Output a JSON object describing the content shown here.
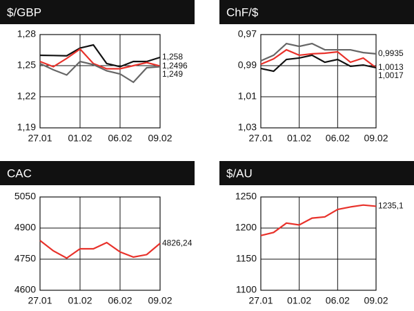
{
  "chart_data": [
    {
      "type": "line",
      "title": "$/GBP",
      "x": [
        "27.01",
        null,
        null,
        "01.02",
        null,
        null,
        "06.02",
        null,
        null,
        "09.02"
      ],
      "series": [
        {
          "color": "#111111",
          "values": [
            1.26,
            1.2598,
            1.2595,
            1.267,
            1.27,
            1.252,
            1.249,
            1.254,
            1.254,
            1.258
          ],
          "value_labels": [
            null,
            null,
            null,
            null,
            null,
            null,
            null,
            null,
            null,
            "1,258"
          ]
        },
        {
          "color": "#e8312a",
          "values": [
            1.254,
            1.249,
            1.257,
            1.266,
            1.252,
            1.247,
            1.247,
            1.25,
            1.253,
            1.2496
          ],
          "value_labels": [
            null,
            null,
            null,
            null,
            null,
            null,
            null,
            null,
            null,
            "1,2496"
          ]
        },
        {
          "color": "#666666",
          "values": [
            1.252,
            1.246,
            1.241,
            1.254,
            1.251,
            1.245,
            1.242,
            1.234,
            1.248,
            1.249
          ],
          "value_labels": [
            null,
            null,
            null,
            null,
            null,
            null,
            null,
            null,
            null,
            "1,249"
          ]
        }
      ],
      "ylim": [
        1.19,
        1.28
      ],
      "yticks": [
        {
          "value": 1.19,
          "label": "1,19"
        },
        {
          "value": 1.22,
          "label": "1,22"
        },
        {
          "value": 1.25,
          "label": "1,25"
        },
        {
          "value": 1.28,
          "label": "1,28"
        }
      ],
      "grid": true
    },
    {
      "type": "line",
      "title": "ChF/$",
      "x": [
        "27.01",
        null,
        null,
        "01.02",
        null,
        null,
        "06.02",
        null,
        null,
        "09.02"
      ],
      "series": [
        {
          "color": "#666666",
          "values": [
            0.9869,
            0.9833,
            0.9758,
            0.9776,
            0.9758,
            0.9798,
            0.9798,
            0.9798,
            0.9816,
            0.9824
          ]
        },
        {
          "color": "#e8312a",
          "values": [
            0.9891,
            0.9856,
            0.9798,
            0.9833,
            0.9824,
            0.982,
            0.9811,
            0.9878,
            0.9851,
            0.9913
          ]
        },
        {
          "color": "#111111",
          "values": [
            0.9918,
            0.9936,
            0.986,
            0.9851,
            0.9833,
            0.9878,
            0.986,
            0.9904,
            0.9896,
            0.9913
          ]
        }
      ],
      "annotations": [
        "0,9935",
        "1,0013",
        "1,0017"
      ],
      "ylim": [
        1.03,
        0.97
      ],
      "yticks": [
        {
          "value": 0.97,
          "label": "0,97"
        },
        {
          "value": 0.99,
          "label": "0,99"
        },
        {
          "value": 1.01,
          "label": "1,01"
        },
        {
          "value": 1.03,
          "label": "1,03"
        }
      ],
      "grid": true
    },
    {
      "type": "line",
      "title": "CAC",
      "x": [
        "27.01",
        null,
        null,
        "01.02",
        null,
        null,
        "06.02",
        null,
        null,
        "09.02"
      ],
      "series": [
        {
          "color": "#e8312a",
          "values": [
            4840,
            4790,
            4755,
            4800,
            4800,
            4830,
            4785,
            4760,
            4772,
            4826.24
          ],
          "value_labels": [
            null,
            null,
            null,
            null,
            null,
            null,
            null,
            null,
            null,
            "4826,24"
          ]
        }
      ],
      "ylim": [
        4600,
        5050
      ],
      "yticks": [
        4600,
        4750,
        4900,
        5050
      ],
      "grid": true
    },
    {
      "type": "line",
      "title": "$/AU",
      "x": [
        "27.01",
        null,
        null,
        "01.02",
        null,
        null,
        "06.02",
        null,
        null,
        "09.02"
      ],
      "series": [
        {
          "color": "#e8312a",
          "values": [
            1188,
            1193,
            1208,
            1205,
            1216,
            1218,
            1230,
            1234,
            1237,
            1235.1
          ],
          "value_labels": [
            null,
            null,
            null,
            null,
            null,
            null,
            null,
            null,
            null,
            "1235,1"
          ]
        }
      ],
      "ylim": [
        1100,
        1250
      ],
      "yticks": [
        1100,
        1150,
        1200,
        1250
      ],
      "grid": true
    }
  ]
}
